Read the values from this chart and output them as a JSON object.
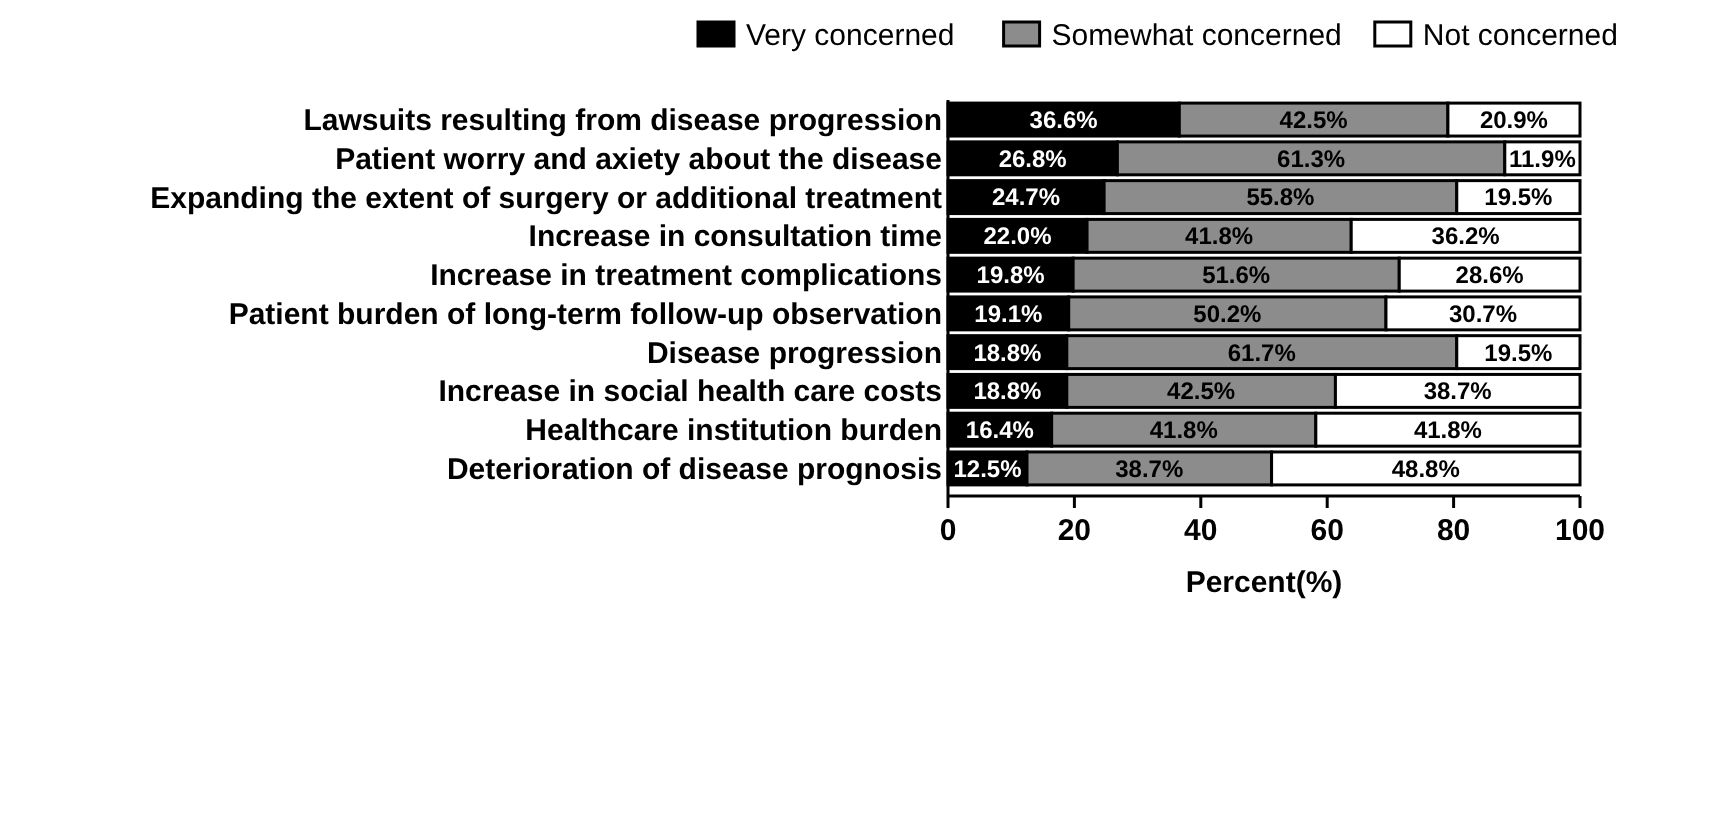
{
  "chart_data": {
    "type": "bar",
    "orientation": "horizontal",
    "stacked": true,
    "xlabel": "Percent(%)",
    "xlim": [
      0,
      100
    ],
    "xticks": [
      0,
      20,
      40,
      60,
      80,
      100
    ],
    "grid": false,
    "legend": "top",
    "categories": [
      "Lawsuits resulting from disease progression",
      "Patient worry and axiety about the disease",
      "Expanding the extent of surgery or additional treatment",
      "Increase in consultation time",
      "Increase in treatment complications",
      "Patient burden of long-term follow-up observation",
      "Disease progression",
      "Increase in social health care costs",
      "Healthcare institution burden",
      "Deterioration of disease prognosis"
    ],
    "series": [
      {
        "name": "Very concerned",
        "color": "#000000",
        "values": [
          36.6,
          26.8,
          24.7,
          22.0,
          19.8,
          19.1,
          18.8,
          18.8,
          16.4,
          12.5
        ],
        "value_labels": [
          "36.6%",
          "26.8%",
          "24.7%",
          "22.0%",
          "19.8%",
          "19.1%",
          "18.8%",
          "18.8%",
          "16.4%",
          "12.5%"
        ]
      },
      {
        "name": "Somewhat concerned",
        "color": "#8c8c8c",
        "values": [
          42.5,
          61.3,
          55.8,
          41.8,
          51.6,
          50.2,
          61.7,
          42.5,
          41.8,
          38.7
        ],
        "value_labels": [
          "42.5%",
          "61.3%",
          "55.8%",
          "41.8%",
          "51.6%",
          "50.2%",
          "61.7%",
          "42.5%",
          "41.8%",
          "38.7%"
        ]
      },
      {
        "name": "Not concerned",
        "color": "#ffffff",
        "values": [
          20.9,
          11.9,
          19.5,
          36.2,
          28.6,
          30.7,
          19.5,
          38.7,
          41.8,
          48.8
        ],
        "value_labels": [
          "20.9%",
          "11.9%",
          "19.5%",
          "36.2%",
          "28.6%",
          "30.7%",
          "19.5%",
          "38.7%",
          "41.8%",
          "48.8%"
        ]
      }
    ]
  }
}
